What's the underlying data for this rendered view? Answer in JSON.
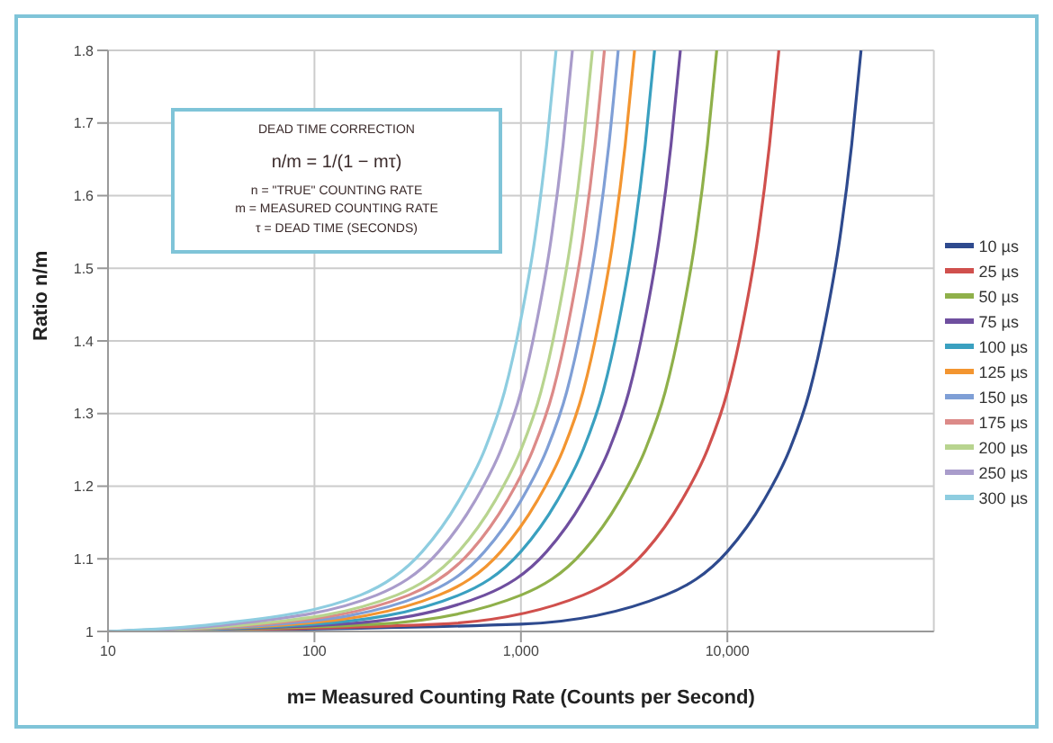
{
  "chart_data": {
    "type": "line",
    "xlabel": "m= Measured Counting Rate (Counts per Second)",
    "ylabel": "Ratio n/m",
    "annotations": [
      "DEAD TIME CORRECTION",
      "n/m = 1/(1 − mτ)",
      "n = \"TRUE\" COUNTING RATE",
      "m = MEASURED COUNTING RATE",
      "τ = DEAD TIME (SECONDS)"
    ],
    "log": "x",
    "grid": true,
    "legend": "right",
    "marker": "none",
    "line_style": "solid",
    "xlim": [
      10,
      100000
    ],
    "xticks": [
      10,
      100,
      {
        "value": 1000,
        "label": "1,000"
      },
      {
        "value": 10000,
        "label": "10,000"
      }
    ],
    "ylim": [
      1,
      1.8
    ],
    "yticks": [
      1,
      1.1,
      1.2,
      1.3,
      1.4,
      1.5,
      1.6,
      1.7,
      1.8
    ],
    "series": [
      {
        "name": "10 µs",
        "color": "#2e4a8e",
        "x": [
          10,
          1000,
          5000,
          10000,
          15000,
          20000,
          25000,
          30000,
          35000,
          40000,
          44400
        ],
        "values": [
          1,
          1.01,
          1.05,
          1.11,
          1.18,
          1.25,
          1.33,
          1.43,
          1.54,
          1.67,
          1.8
        ]
      },
      {
        "name": "25 µs",
        "color": "#d0504d",
        "x": [
          10,
          400,
          2000,
          4000,
          6000,
          8000,
          10000,
          12000,
          14000,
          16000,
          17760
        ],
        "values": [
          1,
          1.01,
          1.05,
          1.11,
          1.18,
          1.25,
          1.33,
          1.43,
          1.54,
          1.67,
          1.8
        ]
      },
      {
        "name": "50 µs",
        "color": "#8fb04a",
        "x": [
          10,
          200,
          1000,
          2000,
          3000,
          4000,
          5000,
          6000,
          7000,
          8000,
          8880
        ],
        "values": [
          1,
          1.01,
          1.05,
          1.11,
          1.18,
          1.25,
          1.33,
          1.43,
          1.54,
          1.67,
          1.8
        ]
      },
      {
        "name": "75 µs",
        "color": "#6f4f9f",
        "x": [
          10,
          133,
          667,
          1333,
          2000,
          2667,
          3333,
          4000,
          4667,
          5333,
          5920
        ],
        "values": [
          1,
          1.01,
          1.05,
          1.11,
          1.18,
          1.25,
          1.33,
          1.43,
          1.54,
          1.67,
          1.8
        ]
      },
      {
        "name": "100 µs",
        "color": "#3aa0c0",
        "x": [
          10,
          100,
          500,
          1000,
          1500,
          2000,
          2500,
          3000,
          3500,
          4000,
          4440
        ],
        "values": [
          1,
          1.01,
          1.05,
          1.11,
          1.18,
          1.25,
          1.33,
          1.43,
          1.54,
          1.67,
          1.8
        ]
      },
      {
        "name": "125 µs",
        "color": "#f39530",
        "x": [
          10,
          80,
          400,
          800,
          1200,
          1600,
          2000,
          2400,
          2800,
          3200,
          3552
        ],
        "values": [
          1,
          1.01,
          1.05,
          1.11,
          1.18,
          1.25,
          1.33,
          1.43,
          1.54,
          1.67,
          1.8
        ]
      },
      {
        "name": "150 µs",
        "color": "#7f9fd6",
        "x": [
          10,
          67,
          333,
          667,
          1000,
          1333,
          1667,
          2000,
          2333,
          2667,
          2960
        ],
        "values": [
          1,
          1.01,
          1.05,
          1.11,
          1.18,
          1.25,
          1.33,
          1.43,
          1.54,
          1.67,
          1.8
        ]
      },
      {
        "name": "175 µs",
        "color": "#dc8a88",
        "x": [
          10,
          57,
          286,
          571,
          857,
          1143,
          1429,
          1714,
          2000,
          2286,
          2537
        ],
        "values": [
          1,
          1.01,
          1.05,
          1.11,
          1.18,
          1.25,
          1.33,
          1.43,
          1.54,
          1.67,
          1.8
        ]
      },
      {
        "name": "200 µs",
        "color": "#b8d48f",
        "x": [
          10,
          50,
          250,
          500,
          750,
          1000,
          1250,
          1500,
          1750,
          2000,
          2220
        ],
        "values": [
          1,
          1.01,
          1.05,
          1.11,
          1.18,
          1.25,
          1.33,
          1.43,
          1.54,
          1.67,
          1.8
        ]
      },
      {
        "name": "250 µs",
        "color": "#a99ccb",
        "x": [
          10,
          40,
          200,
          400,
          600,
          800,
          1000,
          1200,
          1400,
          1600,
          1776
        ],
        "values": [
          1,
          1.01,
          1.05,
          1.11,
          1.18,
          1.25,
          1.33,
          1.43,
          1.54,
          1.67,
          1.8
        ]
      },
      {
        "name": "300 µs",
        "color": "#8ecde0",
        "x": [
          10,
          33,
          167,
          333,
          500,
          667,
          833,
          1000,
          1167,
          1333,
          1480
        ],
        "values": [
          1,
          1.01,
          1.05,
          1.11,
          1.18,
          1.25,
          1.33,
          1.43,
          1.54,
          1.67,
          1.8
        ]
      }
    ]
  }
}
